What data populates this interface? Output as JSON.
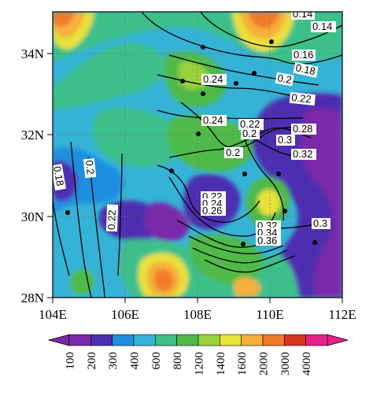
{
  "map": {
    "lon_ticks": [
      "104E",
      "106E",
      "108E",
      "110E",
      "112E"
    ],
    "lat_ticks": [
      "34N",
      "32N",
      "30N",
      "28N"
    ],
    "contour_labels": [
      "0.14",
      "0.14",
      "0.16",
      "0.18",
      "0.2",
      "0.22",
      "0.24",
      "0.24",
      "0.22",
      "0.2",
      "0.28",
      "0.3",
      "0.2",
      "0.32",
      "0.18",
      "0.2",
      "0.22",
      "0.22",
      "0.24",
      "0.26",
      "0.32",
      "0.34",
      "0.36",
      "0.3"
    ],
    "stations_count_visible": 15
  },
  "colorbar": {
    "labels": [
      "100",
      "200",
      "300",
      "400",
      "600",
      "800",
      "1200",
      "1400",
      "1600",
      "2000",
      "3000",
      "4000"
    ],
    "colors": [
      "#7a2aa8",
      "#4d2fb0",
      "#1f8fe0",
      "#35b3d6",
      "#3dbf8a",
      "#4fba4a",
      "#9bd03e",
      "#e8e23a",
      "#f5b03a",
      "#f07a2a",
      "#d6351f",
      "#e8208a"
    ]
  }
}
